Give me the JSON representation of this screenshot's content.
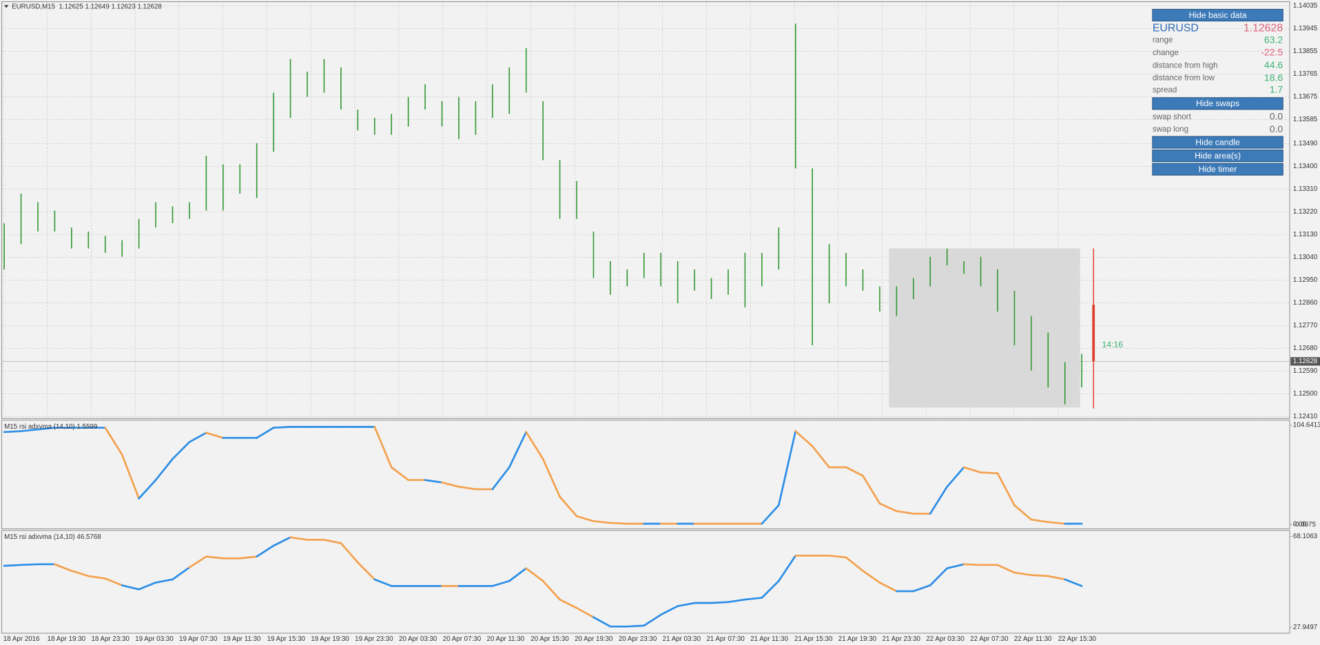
{
  "chart_data": [
    {
      "type": "range_bar",
      "title": "EURUSD,M15  1.12625 1.12649 1.12623 1.12628",
      "color": "#2e962e",
      "high": [
        1.13175,
        1.13292,
        1.13258,
        1.13225,
        1.13158,
        1.13142,
        1.13125,
        1.13108,
        1.13192,
        1.13258,
        1.13242,
        1.13258,
        1.13442,
        1.13408,
        1.13408,
        1.13492,
        1.13692,
        1.13825,
        1.13775,
        1.13825,
        1.13792,
        1.13625,
        1.13592,
        1.13608,
        1.13675,
        1.13725,
        1.13658,
        1.13675,
        1.13658,
        1.13725,
        1.13792,
        1.13868,
        1.13658,
        1.13425,
        1.13342,
        1.13142,
        1.13025,
        1.12992,
        1.13058,
        1.13058,
        1.13025,
        1.12992,
        1.12958,
        1.12992,
        1.13058,
        1.13058,
        1.13158,
        1.13965,
        1.13392,
        1.13092,
        1.13058,
        1.12992,
        1.12925,
        1.12925,
        1.12958,
        1.13042,
        1.13075,
        1.13025,
        1.13042,
        1.12992,
        1.12908,
        1.12808,
        1.12742,
        1.12625,
        1.12658
      ],
      "low": [
        1.12992,
        1.13092,
        1.13142,
        1.13142,
        1.13075,
        1.13075,
        1.13058,
        1.13042,
        1.13075,
        1.13158,
        1.13175,
        1.13192,
        1.13225,
        1.13225,
        1.13292,
        1.13275,
        1.13458,
        1.13592,
        1.13675,
        1.13692,
        1.13625,
        1.13542,
        1.13525,
        1.13525,
        1.13558,
        1.13625,
        1.13558,
        1.13508,
        1.13525,
        1.13592,
        1.13608,
        1.13692,
        1.13425,
        1.13192,
        1.13192,
        1.12958,
        1.12892,
        1.12925,
        1.12958,
        1.12925,
        1.12858,
        1.12908,
        1.12875,
        1.12892,
        1.12842,
        1.12925,
        1.12992,
        1.13392,
        1.12692,
        1.12858,
        1.12925,
        1.12908,
        1.12825,
        1.12808,
        1.12875,
        1.12925,
        1.13008,
        1.12975,
        1.12925,
        1.12825,
        1.12692,
        1.12592,
        1.12525,
        1.12458,
        1.12525
      ],
      "ylim": [
        1.12402,
        1.14052
      ],
      "yticks": [
        1.14035,
        1.13945,
        1.13855,
        1.13765,
        1.13675,
        1.13585,
        {
          "value": 1.1349,
          "label": "1.13490"
        },
        {
          "value": 1.134,
          "label": "1.13400"
        },
        {
          "value": 1.1331,
          "label": "1.13310"
        },
        {
          "value": 1.1322,
          "label": "1.13220"
        },
        {
          "value": 1.1313,
          "label": "1.13130"
        },
        {
          "value": 1.1304,
          "label": "1.13040"
        },
        {
          "value": 1.1295,
          "label": "1.12950"
        },
        {
          "value": 1.1286,
          "label": "1.12860"
        },
        {
          "value": 1.1277,
          "label": "1.12770"
        },
        {
          "value": 1.1268,
          "label": "1.12680"
        },
        {
          "value": 1.1259,
          "label": "1.12590"
        },
        {
          "value": 1.125,
          "label": "1.12500"
        },
        {
          "value": 1.1241,
          "label": "1.12410"
        }
      ],
      "last_price": 1.12628,
      "timer": "14:16",
      "grid": true,
      "x_labels": [
        "18 Apr 2016",
        "18 Apr 19:30",
        "18 Apr 23:30",
        "19 Apr 03:30",
        "19 Apr 07:30",
        "19 Apr 11:30",
        "19 Apr 15:30",
        "19 Apr 19:30",
        "19 Apr 23:30",
        "20 Apr 03:30",
        "20 Apr 07:30",
        "20 Apr 11:30",
        "20 Apr 15:30",
        "20 Apr 19:30",
        "20 Apr 23:30",
        "21 Apr 03:30",
        "21 Apr 07:30",
        "21 Apr 11:30",
        "21 Apr 15:30",
        "21 Apr 19:30",
        "21 Apr 23:30",
        "22 Apr 03:30",
        "22 Apr 07:30",
        "22 Apr 11:30",
        "22 Apr 15:30"
      ]
    },
    {
      "type": "line",
      "title": "M15 rsi adxvma (14,10) 1.5599",
      "values": [
        97.5,
        98.4,
        100.2,
        102.0,
        102.0,
        102.0,
        102.0,
        73.6,
        27.4,
        46.9,
        69.1,
        86.9,
        96.7,
        91.3,
        91.3,
        91.3,
        102.0,
        102.9,
        102.9,
        102.9,
        102.9,
        102.9,
        102.9,
        60.3,
        46.9,
        46.9,
        44.3,
        39.8,
        37.2,
        37.2,
        60.3,
        97.5,
        69.1,
        29.2,
        8.8,
        3.5,
        1.7,
        0.8,
        0.8,
        0.8,
        0.8,
        0.8,
        0.8,
        0.8,
        0.8,
        0.8,
        20.3,
        98.4,
        82.5,
        60.3,
        60.3,
        51.4,
        22.1,
        14.1,
        11.4,
        11.4,
        39.8,
        60.3,
        54.9,
        54.0,
        20.3,
        5.2,
        2.6,
        0.8,
        0.8
      ],
      "colors": [
        "#2b8de6",
        "#2b8de6",
        "#2b8de6",
        "#2b8de6",
        "#2b8de6",
        "#2b8de6",
        "#2b8de6",
        "#f4a04c",
        "#f4a04c",
        "#2b8de6",
        "#2b8de6",
        "#2b8de6",
        "#2b8de6",
        "#f4a04c",
        "#2b8de6",
        "#2b8de6",
        "#2b8de6",
        "#2b8de6",
        "#2b8de6",
        "#2b8de6",
        "#2b8de6",
        "#2b8de6",
        "#2b8de6",
        "#f4a04c",
        "#f4a04c",
        "#f4a04c",
        "#2b8de6",
        "#f4a04c",
        "#f4a04c",
        "#f4a04c",
        "#2b8de6",
        "#2b8de6",
        "#f4a04c",
        "#f4a04c",
        "#f4a04c",
        "#f4a04c",
        "#f4a04c",
        "#f4a04c",
        "#f4a04c",
        "#2b8de6",
        "#f4a04c",
        "#2b8de6",
        "#f4a04c",
        "#f4a04c",
        "#f4a04c",
        "#f4a04c",
        "#2b8de6",
        "#2b8de6",
        "#f4a04c",
        "#f4a04c",
        "#f4a04c",
        "#f4a04c",
        "#f4a04c",
        "#f4a04c",
        "#f4a04c",
        "#f4a04c",
        "#2b8de6",
        "#2b8de6",
        "#f4a04c",
        "#f4a04c",
        "#f4a04c",
        "#f4a04c",
        "#f4a04c",
        "#f4a04c",
        "#2b8de6"
      ],
      "ylim": [
        -0.0975,
        104.6413
      ],
      "yticks": [
        104.6413,
        {
          "value": 0,
          "label": "0.00"
        },
        -0.0975
      ]
    },
    {
      "type": "line",
      "title": "M15 rsi adxvma (14,10) 46.5768",
      "values": [
        55.1,
        55.5,
        55.8,
        55.8,
        52.9,
        50.6,
        49.5,
        46.5,
        44.7,
        47.7,
        49.1,
        54.4,
        59.2,
        58.4,
        58.4,
        59.2,
        64.0,
        67.7,
        66.6,
        66.6,
        65.1,
        56.6,
        49.1,
        46.2,
        46.2,
        46.2,
        46.2,
        46.2,
        46.2,
        46.2,
        48.4,
        54.0,
        48.4,
        40.2,
        36.5,
        32.4,
        28.3,
        28.3,
        28.7,
        33.5,
        37.3,
        38.7,
        38.7,
        39.1,
        40.2,
        41.0,
        48.4,
        59.6,
        59.6,
        59.6,
        58.8,
        52.9,
        47.7,
        43.9,
        43.9,
        46.5,
        54.0,
        55.8,
        55.5,
        55.5,
        52.1,
        51.0,
        50.6,
        49.1,
        46.2
      ],
      "colors": [
        "#2b8de6",
        "#2b8de6",
        "#2b8de6",
        "#2b8de6",
        "#f4a04c",
        "#f4a04c",
        "#f4a04c",
        "#f4a04c",
        "#2b8de6",
        "#2b8de6",
        "#2b8de6",
        "#2b8de6",
        "#f4a04c",
        "#f4a04c",
        "#f4a04c",
        "#f4a04c",
        "#2b8de6",
        "#2b8de6",
        "#f4a04c",
        "#f4a04c",
        "#f4a04c",
        "#f4a04c",
        "#f4a04c",
        "#2b8de6",
        "#2b8de6",
        "#2b8de6",
        "#2b8de6",
        "#f4a04c",
        "#2b8de6",
        "#2b8de6",
        "#2b8de6",
        "#2b8de6",
        "#f4a04c",
        "#f4a04c",
        "#f4a04c",
        "#f4a04c",
        "#2b8de6",
        "#2b8de6",
        "#2b8de6",
        "#2b8de6",
        "#2b8de6",
        "#2b8de6",
        "#2b8de6",
        "#2b8de6",
        "#2b8de6",
        "#2b8de6",
        "#2b8de6",
        "#2b8de6",
        "#f4a04c",
        "#f4a04c",
        "#f4a04c",
        "#f4a04c",
        "#f4a04c",
        "#f4a04c",
        "#2b8de6",
        "#2b8de6",
        "#2b8de6",
        "#2b8de6",
        "#f4a04c",
        "#f4a04c",
        "#f4a04c",
        "#f4a04c",
        "#f4a04c",
        "#f4a04c",
        "#2b8de6"
      ],
      "ylim": [
        27.9497,
        68.1063
      ],
      "yticks": [
        68.1063,
        27.9497
      ]
    }
  ],
  "panel": {
    "buttons": [
      "Hide basic data",
      "Hide swaps",
      "Hide candle",
      "Hide area(s)",
      "Hide timer"
    ],
    "symbol": "EURUSD",
    "price": "1.12628",
    "stats": [
      [
        "range",
        "63.2"
      ],
      [
        "change",
        "-22.5"
      ],
      [
        "distance from high",
        "44.6"
      ],
      [
        "distance from low",
        "18.6"
      ],
      [
        "spread",
        "1.7"
      ]
    ],
    "swaps": [
      [
        "swap short",
        "0.0"
      ],
      [
        "swap long",
        "0.0"
      ]
    ]
  }
}
